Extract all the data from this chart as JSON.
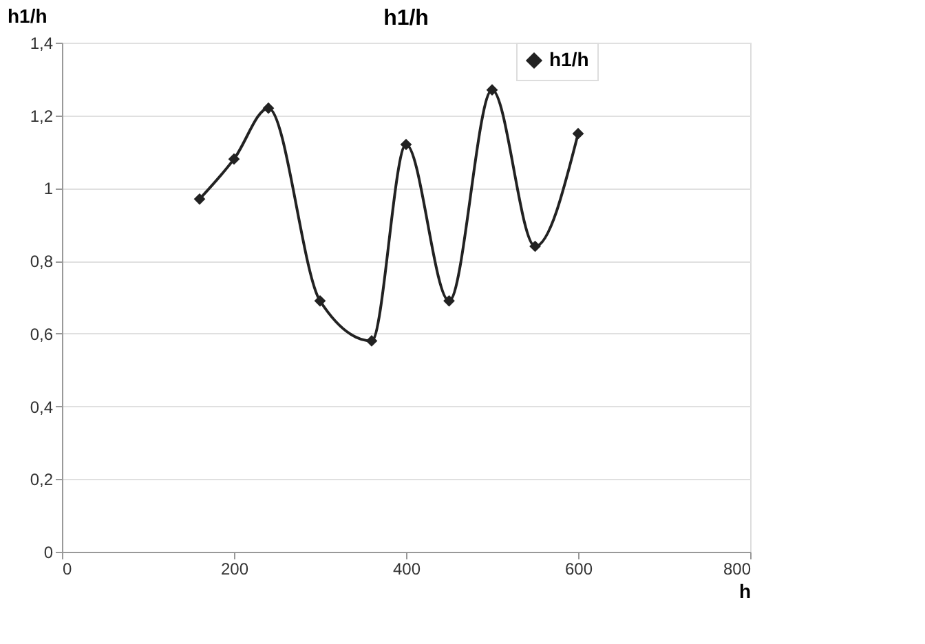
{
  "chart_data": {
    "type": "line",
    "title": "h1/h",
    "xlabel": "h",
    "ylabel": "h1/h",
    "x": [
      160,
      200,
      240,
      300,
      360,
      400,
      450,
      500,
      550,
      600
    ],
    "series": [
      {
        "name": "h1/h",
        "color": "#222222",
        "values": [
          0.97,
          1.08,
          1.22,
          0.69,
          0.58,
          1.12,
          0.69,
          1.27,
          0.84,
          1.15
        ]
      }
    ],
    "xlim": [
      0,
      800
    ],
    "xticks": [
      0,
      200,
      400,
      600,
      800
    ],
    "ylim": [
      0,
      1.4
    ],
    "yticks": [
      0,
      {
        "value": 0.2,
        "label": "0,2"
      },
      {
        "value": 0.4,
        "label": "0,4"
      },
      {
        "value": 0.6,
        "label": "0,6"
      },
      {
        "value": 0.8,
        "label": "0,8"
      },
      1,
      {
        "value": 1.2,
        "label": "1,2"
      },
      {
        "value": 1.4,
        "label": "1,4"
      }
    ],
    "grid": "y",
    "legend": "right",
    "marker": "diamond",
    "line_style": "solid"
  }
}
